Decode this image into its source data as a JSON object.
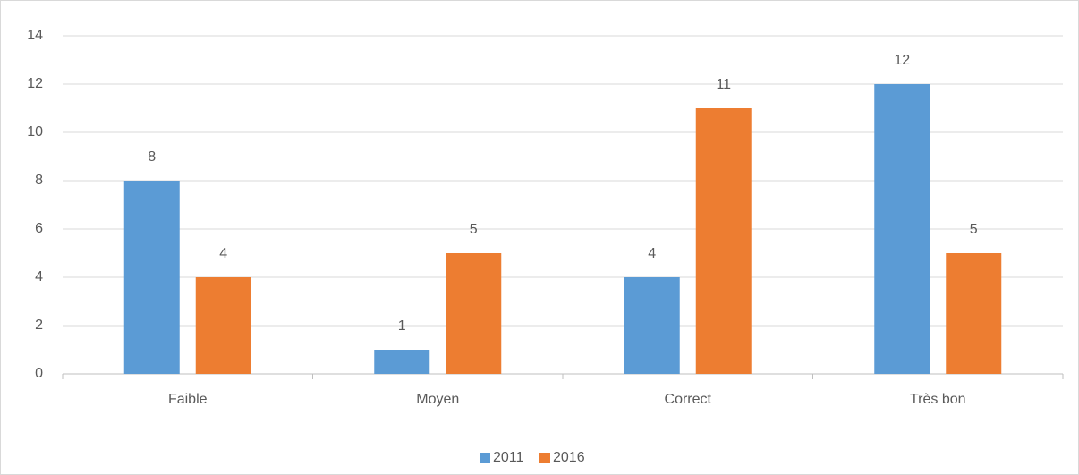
{
  "chart_data": {
    "type": "bar",
    "categories": [
      "Faible",
      "Moyen",
      "Correct",
      "Très bon"
    ],
    "series": [
      {
        "name": "2011",
        "color": "#5b9bd5",
        "values": [
          8,
          1,
          4,
          12
        ]
      },
      {
        "name": "2016",
        "color": "#ed7d31",
        "values": [
          4,
          5,
          11,
          5
        ]
      }
    ],
    "ylim": [
      0,
      14
    ],
    "yticks": [
      0,
      2,
      4,
      6,
      8,
      10,
      12,
      14
    ],
    "grid": true,
    "legend": "bottom"
  }
}
